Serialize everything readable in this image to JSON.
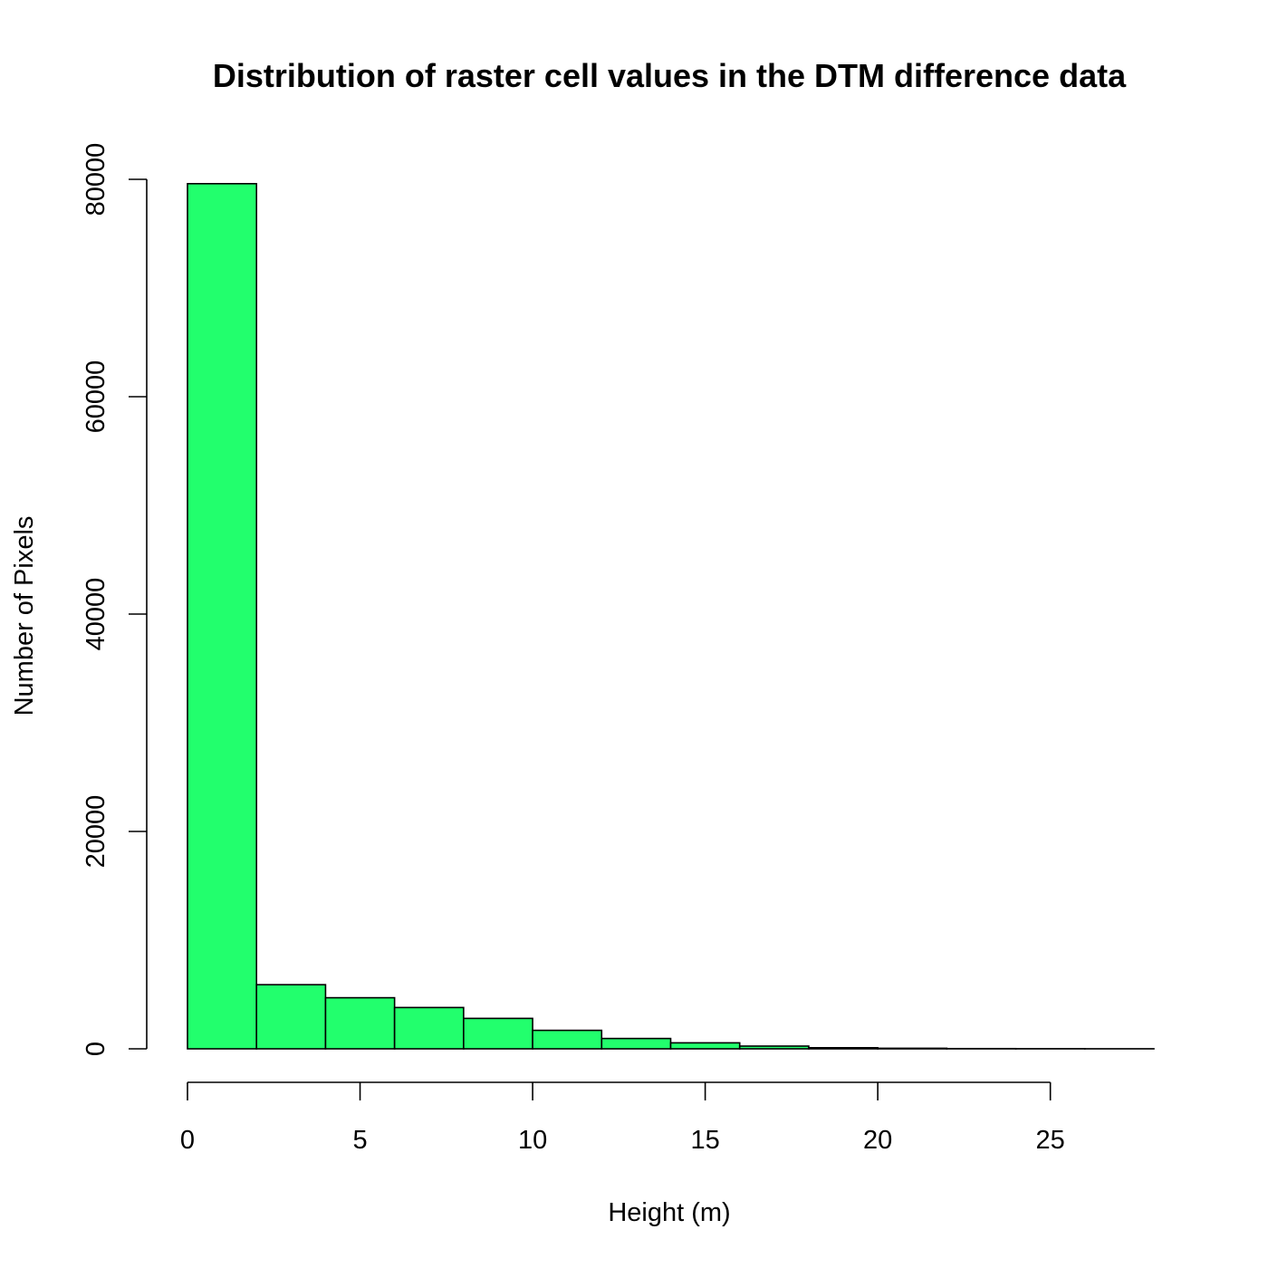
{
  "chart_data": {
    "type": "bar",
    "title": "Distribution of raster cell values in the DTM difference data",
    "xlabel": "Height (m)",
    "ylabel": "Number of Pixels",
    "bin_edges": [
      0,
      2,
      4,
      6,
      8,
      10,
      12,
      14,
      16,
      18,
      20,
      22,
      24,
      26,
      28
    ],
    "values": [
      79600,
      5900,
      4700,
      3800,
      2800,
      1700,
      950,
      550,
      250,
      100,
      50,
      20,
      10,
      5
    ],
    "xlim": [
      0,
      28
    ],
    "ylim": [
      0,
      80000
    ],
    "x_ticks": [
      0,
      5,
      10,
      15,
      20,
      25
    ],
    "x_tick_labels": [
      "0",
      "5",
      "10",
      "15",
      "20",
      "25"
    ],
    "y_ticks": [
      0,
      20000,
      40000,
      60000,
      80000
    ],
    "y_tick_labels": [
      "0",
      "20000",
      "40000",
      "60000",
      "80000"
    ],
    "bar_color": "#22ff6d",
    "grid": false,
    "legend": "none"
  }
}
